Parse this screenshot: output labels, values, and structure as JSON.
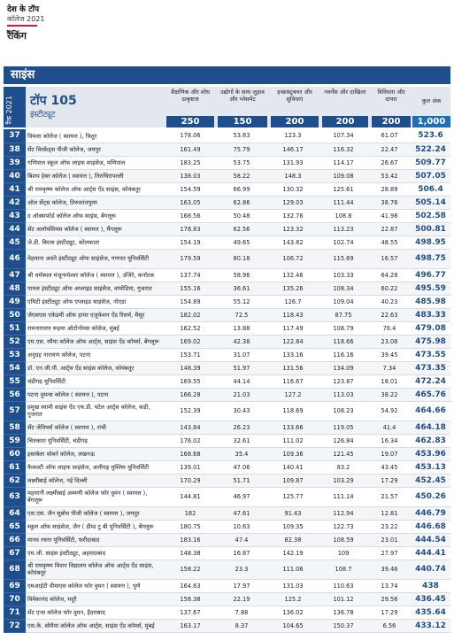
{
  "masthead": {
    "line1": "देश के टॉप",
    "line2": "कॉलेज",
    "year": "2021",
    "line3": "रैंकिंग"
  },
  "section": {
    "title": "साइंस"
  },
  "header": {
    "rank_label": "रैंक 2021",
    "top_title": "टॉप 105",
    "top_subtitle": "इंस्टीट्यूट",
    "columns": [
      {
        "label": "शैक्षणिक और शोध उत्कृष्टता",
        "weight": "250"
      },
      {
        "label": "उद्योगों के साथ जुड़ाव और प्लेसमेंट",
        "weight": "150"
      },
      {
        "label": "इन्फ्रास्ट्रक्चर और सुविधाएं",
        "weight": "200"
      },
      {
        "label": "गवर्नेंस और दाखिला",
        "weight": "200"
      },
      {
        "label": "विविधता और दायरा",
        "weight": "200"
      },
      {
        "label": "कुल अंक",
        "weight": "1,000"
      }
    ]
  },
  "rows": [
    {
      "rank": "37",
      "name": "विमला कॉलेज ( स्वायत्त ), त्रिशूर",
      "c1": "178.06",
      "c2": "53.83",
      "c3": "123.3",
      "c4": "107.34",
      "c5": "61.07",
      "total": "523.6"
    },
    {
      "rank": "38",
      "name": "सेंट विल्फ्रेड्स पीजी कॉलेज, जयपुर",
      "c1": "161.49",
      "c2": "75.79",
      "c3": "146.17",
      "c4": "116.32",
      "c5": "22.47",
      "total": "522.24"
    },
    {
      "rank": "39",
      "name": "गणिपाल स्कूल ऑफ लाइफ साइंसेज, मणिपाल",
      "c1": "183.25",
      "c2": "53.75",
      "c3": "131.93",
      "c4": "114.17",
      "c5": "26.67",
      "total": "509.77"
    },
    {
      "rank": "40",
      "name": "बिशप हेबर कॉलेज ( स्वायत्त ), तिरुचिरापल्ली",
      "c1": "138.03",
      "c2": "58.22",
      "c3": "148.3",
      "c4": "109.08",
      "c5": "53.42",
      "total": "507.05"
    },
    {
      "rank": "41",
      "name": "श्री रामकृष्ण कॉलेज ऑफ आर्ट्स ऐंड साइंस, कोयंबतूर",
      "c1": "154.59",
      "c2": "66.99",
      "c3": "130.32",
      "c4": "125.61",
      "c5": "28.89",
      "total": "506.4"
    },
    {
      "rank": "42",
      "name": "ऑल सेंट्स कॉलेज, तिरुवनंतपुरम",
      "c1": "163.05",
      "c2": "62.86",
      "c3": "129.03",
      "c4": "111.44",
      "c5": "38.76",
      "total": "505.14"
    },
    {
      "rank": "43",
      "name": "द ऑक्सफोर्ड कॉलेज ऑफ साइंस, बेंगलूरू",
      "c1": "168.56",
      "c2": "50.48",
      "c3": "132.76",
      "c4": "108.8",
      "c5": "41.98",
      "total": "502.58"
    },
    {
      "rank": "44",
      "name": "सेंट अलॉयसियस कॉलेज ( स्वायत्त ), मैंगलूरू",
      "c1": "178.83",
      "c2": "62.56",
      "c3": "123.32",
      "c4": "113.23",
      "c5": "22.87",
      "total": "500.81"
    },
    {
      "rank": "45",
      "name": "जे.डी. बिरला इंस्टीट्यूट, कोलकाता",
      "c1": "154.19",
      "c2": "49.65",
      "c3": "143.82",
      "c4": "102.74",
      "c5": "48.55",
      "total": "498.95"
    },
    {
      "rank": "46",
      "name": "मेहमाना अवंते इंस्टीट्यूट ऑफ साइंसेज, गणपत यूनिवर्सिटी",
      "c1": "179.59",
      "c2": "80.18",
      "c3": "106.72",
      "c4": "115.69",
      "c5": "16.57",
      "total": "498.75",
      "tall": true
    },
    {
      "rank": "47",
      "name": "श्री धर्मस्थल मंजूनाथेश्वर कॉलेज ( स्वायत्त ), उजिरे, कर्नाटक",
      "c1": "137.74",
      "c2": "58.96",
      "c3": "132.46",
      "c4": "103.33",
      "c5": "64.28",
      "total": "496.77"
    },
    {
      "rank": "48",
      "name": "पारुल इंस्टीट्यूट ऑफ अप्लाइड साइंसेज, वाघोडिया, गुजरात",
      "c1": "155.16",
      "c2": "36.61",
      "c3": "135.26",
      "c4": "108.34",
      "c5": "60.22",
      "total": "495.59"
    },
    {
      "rank": "49",
      "name": "एमिटी इंस्टीट्यूट ऑफ एप्लाइड साइंसेज, नोएडा",
      "c1": "154.89",
      "c2": "55.12",
      "c3": "126.7",
      "c4": "109.04",
      "c5": "40.23",
      "total": "485.98"
    },
    {
      "rank": "50",
      "name": "जेएसएस एकेडमी ऑफ हायर एजुकेशन ऐंड रिसर्च, मैसूर",
      "c1": "182.02",
      "c2": "72.5",
      "c3": "118.43",
      "c4": "87.75",
      "c5": "22.63",
      "total": "483.33"
    },
    {
      "rank": "51",
      "name": "रामनारायण रूइया ऑटोनॉमस कॉलेज, मुंबई",
      "c1": "162.52",
      "c2": "13.88",
      "c3": "117.49",
      "c4": "108.79",
      "c5": "76.4",
      "total": "479.08"
    },
    {
      "rank": "52",
      "name": "एम.एस. रमैया कॉलेज ऑफ आर्ट्स, साइंस ऐंड कॉमर्स, बेंगलूरू",
      "c1": "169.02",
      "c2": "42.38",
      "c3": "122.84",
      "c4": "118.66",
      "c5": "23.08",
      "total": "475.98"
    },
    {
      "rank": "53",
      "name": "अनुग्रह नारायण कॉलेज, पटना",
      "c1": "153.71",
      "c2": "31.07",
      "c3": "133.16",
      "c4": "116.16",
      "c5": "39.45",
      "total": "473.55"
    },
    {
      "rank": "54",
      "name": "डॉ. एन.जी.पी. आर्ट्स ऐंड साइंस कॉलेज, कोयंबतूर",
      "c1": "148.39",
      "c2": "51.97",
      "c3": "131.56",
      "c4": "134.09",
      "c5": "7.34",
      "total": "473.35"
    },
    {
      "rank": "55",
      "name": "चंडीगढ़ यूनिवर्सिटी",
      "c1": "169.55",
      "c2": "44.14",
      "c3": "116.67",
      "c4": "123.87",
      "c5": "18.01",
      "total": "472.24"
    },
    {
      "rank": "56",
      "name": "पटना वुमन्स कॉलेज ( स्वायत्त ), पटना",
      "c1": "166.28",
      "c2": "21.03",
      "c3": "127.2",
      "c4": "113.03",
      "c5": "38.22",
      "total": "465.76"
    },
    {
      "rank": "57",
      "name": "प्रमुख स्वामी साइंस ऐंड एच.डी. पटेल आर्ट्स कॉलेज, कड़ी, गुजरात",
      "c1": "152.39",
      "c2": "30.43",
      "c3": "118.69",
      "c4": "108.23",
      "c5": "54.92",
      "total": "464.66",
      "tall": true
    },
    {
      "rank": "58",
      "name": "सेंट जेवियर्स कॉलेज ( स्वायत्त ), रांची",
      "c1": "143.84",
      "c2": "26.23",
      "c3": "133.66",
      "c4": "119.05",
      "c5": "41.4",
      "total": "464.18"
    },
    {
      "rank": "59",
      "name": "चितकारा यूनिवर्सिटी, चंडीगढ़",
      "c1": "176.02",
      "c2": "32.61",
      "c3": "111.02",
      "c4": "126.84",
      "c5": "16.34",
      "total": "462.83"
    },
    {
      "rank": "60",
      "name": "इसाबेला थोबर्न कॉलेज, लखनऊ",
      "c1": "168.68",
      "c2": "35.4",
      "c3": "109.36",
      "c4": "121.45",
      "c5": "19.07",
      "total": "453.96"
    },
    {
      "rank": "61",
      "name": "फैकल्टी ऑफ लाइफ साइंसेज, अलीगढ़ मुस्लिम यूनिवर्सिटी",
      "c1": "139.01",
      "c2": "47.06",
      "c3": "140.41",
      "c4": "83.2",
      "c5": "43.45",
      "total": "453.13"
    },
    {
      "rank": "62",
      "name": "लक्ष्मीबाई कॉलेज, नई दिल्ली",
      "c1": "170.29",
      "c2": "51.71",
      "c3": "109.87",
      "c4": "103.29",
      "c5": "17.29",
      "total": "452.45"
    },
    {
      "rank": "63",
      "name": "महारानी लक्ष्मीबाई अम्मणी कॉलेज फॉर वुमन ( स्वायत्त ), बेंगलूरू",
      "c1": "144.81",
      "c2": "46.97",
      "c3": "125.77",
      "c4": "111.14",
      "c5": "21.57",
      "total": "450.26",
      "tall": true
    },
    {
      "rank": "64",
      "name": "एस.एस. जैन सुबोध पीजी कॉलेज ( स्वायत्त ), जयपुर",
      "c1": "182",
      "c2": "47.61",
      "c3": "91.43",
      "c4": "112.94",
      "c5": "12.81",
      "total": "446.79"
    },
    {
      "rank": "65",
      "name": "स्कूल ऑफ साइंसेज, जैन ( डीम्ड टु बी यूनिवर्सिटी ), बेंगलूरू",
      "c1": "180.75",
      "c2": "10.63",
      "c3": "109.35",
      "c4": "122.73",
      "c5": "23.22",
      "total": "446.68"
    },
    {
      "rank": "66",
      "name": "मानव रचना यूनिवर्सिटी, फरीदाबाद",
      "c1": "183.16",
      "c2": "47.4",
      "c3": "82.38",
      "c4": "108.59",
      "c5": "23.01",
      "total": "444.54"
    },
    {
      "rank": "67",
      "name": "एम.जी. साइंस इंस्टीट्यूट, अहमदाबाद",
      "c1": "148.38",
      "c2": "16.87",
      "c3": "142.19",
      "c4": "109",
      "c5": "27.97",
      "total": "444.41"
    },
    {
      "rank": "68",
      "name": "श्री रामकृष्ण मिशन विद्यालय कॉलेज ऑफ आर्ट्स ऐंड साइंस, कोयंबतूर",
      "c1": "158.22",
      "c2": "23.3",
      "c3": "111.06",
      "c4": "108.7",
      "c5": "39.46",
      "total": "440.74",
      "tall": true
    },
    {
      "rank": "69",
      "name": "एमआईटी वीमाएस कॉलेज फॉर वुमन ( स्वायत्त ), पुणे",
      "c1": "164.63",
      "c2": "17.97",
      "c3": "131.03",
      "c4": "110.63",
      "c5": "13.74",
      "total": "438"
    },
    {
      "rank": "70",
      "name": "विवेकानंद कॉलेज, मदुरै",
      "c1": "158.38",
      "c2": "22.19",
      "c3": "125.2",
      "c4": "101.12",
      "c5": "29.56",
      "total": "436.45"
    },
    {
      "rank": "71",
      "name": "सेंट एन्स कॉलेज फॉर वुमन, हैदराबाद",
      "c1": "137.67",
      "c2": "7.88",
      "c3": "136.02",
      "c4": "136.78",
      "c5": "17.29",
      "total": "435.64"
    },
    {
      "rank": "72",
      "name": "एस.के. सोमैया कॉलेज ऑफ आर्ट्स, साइंस ऐंड कॉमर्स, मुंबई",
      "c1": "163.17",
      "c2": "8.37",
      "c3": "104.65",
      "c4": "150.37",
      "c5": "6.56",
      "total": "433.12"
    }
  ]
}
